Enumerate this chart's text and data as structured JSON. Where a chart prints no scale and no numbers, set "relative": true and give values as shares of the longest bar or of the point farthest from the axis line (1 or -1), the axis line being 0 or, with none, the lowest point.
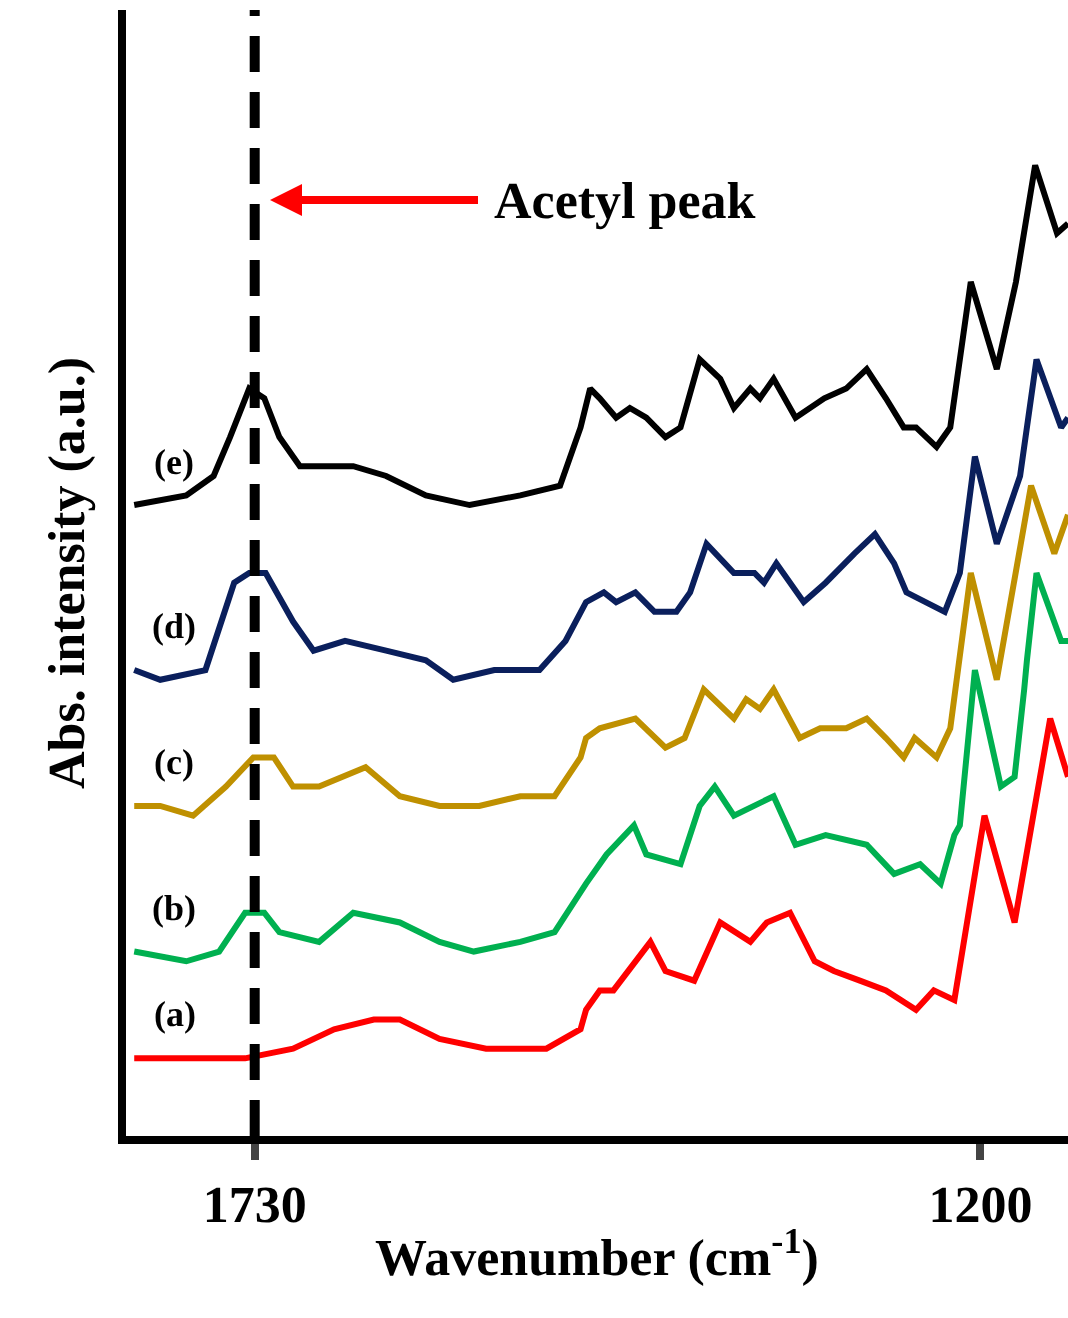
{
  "chart_data": {
    "type": "line",
    "relative": true,
    "xlabel": "Wavenumber (cm$^{-1}$)",
    "ylabel": "Abs. intensity (a.u.)",
    "xlim": [
      1824,
      1136
    ],
    "xticks": [
      1730,
      1200
    ],
    "grid": false,
    "legend": false,
    "line_style": "solid",
    "marker": "none",
    "ref_lines": [
      {
        "axis": "x",
        "value": 1730,
        "color": "#000000",
        "line_style": "dashed"
      }
    ],
    "annotations": [
      "Acetyl peak"
    ],
    "series": [
      {
        "name": "(a)",
        "color": "#ff0000",
        "x": [
          1818,
          1737,
          1702,
          1672,
          1643,
          1624,
          1595,
          1561,
          1517,
          1492,
          1488,
          1478,
          1468,
          1441,
          1430,
          1409,
          1390,
          1368,
          1356,
          1339,
          1321,
          1307,
          1288,
          1269,
          1247,
          1234,
          1219,
          1197,
          1175,
          1149,
          1136
        ],
        "values": [
          0.08,
          0.08,
          0.09,
          0.11,
          0.12,
          0.12,
          0.1,
          0.09,
          0.09,
          0.11,
          0.13,
          0.15,
          0.15,
          0.2,
          0.17,
          0.16,
          0.22,
          0.2,
          0.22,
          0.23,
          0.18,
          0.17,
          0.16,
          0.15,
          0.13,
          0.15,
          0.14,
          0.33,
          0.22,
          0.43,
          0.37
        ]
      },
      {
        "name": "(b)",
        "color": "#00b050",
        "x": [
          1818,
          1780,
          1756,
          1737,
          1723,
          1712,
          1683,
          1658,
          1624,
          1595,
          1570,
          1536,
          1511,
          1488,
          1473,
          1453,
          1444,
          1419,
          1405,
          1394,
          1380,
          1351,
          1335,
          1313,
          1283,
          1263,
          1244,
          1229,
          1219,
          1215,
          1204,
          1196,
          1185,
          1175,
          1168,
          1166,
          1159,
          1141,
          1136
        ],
        "values": [
          0.19,
          0.18,
          0.19,
          0.23,
          0.23,
          0.21,
          0.2,
          0.23,
          0.22,
          0.2,
          0.19,
          0.2,
          0.21,
          0.26,
          0.29,
          0.32,
          0.29,
          0.28,
          0.34,
          0.36,
          0.33,
          0.35,
          0.3,
          0.31,
          0.3,
          0.27,
          0.28,
          0.26,
          0.31,
          0.32,
          0.48,
          0.43,
          0.36,
          0.37,
          0.46,
          0.49,
          0.58,
          0.51,
          0.51
        ]
      },
      {
        "name": "(c)",
        "color": "#bf9000",
        "x": [
          1818,
          1799,
          1775,
          1751,
          1731,
          1716,
          1702,
          1683,
          1649,
          1624,
          1595,
          1566,
          1536,
          1511,
          1492,
          1488,
          1478,
          1452,
          1430,
          1416,
          1402,
          1380,
          1371,
          1361,
          1351,
          1332,
          1317,
          1298,
          1283,
          1269,
          1256,
          1248,
          1232,
          1222,
          1207,
          1188,
          1163,
          1146,
          1136
        ],
        "values": [
          0.34,
          0.34,
          0.33,
          0.36,
          0.39,
          0.39,
          0.36,
          0.36,
          0.38,
          0.35,
          0.34,
          0.34,
          0.35,
          0.35,
          0.39,
          0.41,
          0.42,
          0.43,
          0.4,
          0.41,
          0.46,
          0.43,
          0.45,
          0.44,
          0.46,
          0.41,
          0.42,
          0.42,
          0.43,
          0.41,
          0.39,
          0.41,
          0.39,
          0.42,
          0.58,
          0.47,
          0.67,
          0.6,
          0.64
        ]
      },
      {
        "name": "(d)",
        "color": "#0a1f5c",
        "x": [
          1818,
          1799,
          1766,
          1745,
          1734,
          1722,
          1702,
          1687,
          1664,
          1634,
          1605,
          1585,
          1555,
          1522,
          1503,
          1488,
          1475,
          1466,
          1452,
          1438,
          1422,
          1412,
          1400,
          1380,
          1365,
          1358,
          1349,
          1329,
          1313,
          1292,
          1277,
          1263,
          1254,
          1240,
          1226,
          1215,
          1204,
          1188,
          1171,
          1159,
          1141,
          1136
        ],
        "values": [
          0.48,
          0.47,
          0.48,
          0.57,
          0.58,
          0.58,
          0.53,
          0.5,
          0.51,
          0.5,
          0.49,
          0.47,
          0.48,
          0.48,
          0.51,
          0.55,
          0.56,
          0.55,
          0.56,
          0.54,
          0.54,
          0.56,
          0.61,
          0.58,
          0.58,
          0.57,
          0.59,
          0.55,
          0.57,
          0.6,
          0.62,
          0.59,
          0.56,
          0.55,
          0.54,
          0.58,
          0.7,
          0.61,
          0.68,
          0.8,
          0.73,
          0.74
        ]
      },
      {
        "name": "(e)",
        "color": "#000000",
        "x": [
          1818,
          1780,
          1760,
          1748,
          1734,
          1723,
          1712,
          1697,
          1658,
          1634,
          1605,
          1573,
          1536,
          1507,
          1492,
          1485,
          1478,
          1466,
          1456,
          1444,
          1430,
          1419,
          1405,
          1390,
          1380,
          1368,
          1361,
          1351,
          1335,
          1314,
          1298,
          1283,
          1269,
          1256,
          1247,
          1232,
          1222,
          1207,
          1188,
          1174,
          1160,
          1144,
          1136
        ],
        "values": [
          0.65,
          0.66,
          0.68,
          0.72,
          0.77,
          0.76,
          0.72,
          0.69,
          0.69,
          0.68,
          0.66,
          0.65,
          0.66,
          0.67,
          0.73,
          0.77,
          0.76,
          0.74,
          0.75,
          0.74,
          0.72,
          0.73,
          0.8,
          0.78,
          0.75,
          0.77,
          0.76,
          0.78,
          0.74,
          0.76,
          0.77,
          0.79,
          0.76,
          0.73,
          0.73,
          0.71,
          0.73,
          0.88,
          0.79,
          0.88,
          1.0,
          0.93,
          0.94
        ]
      }
    ]
  }
}
